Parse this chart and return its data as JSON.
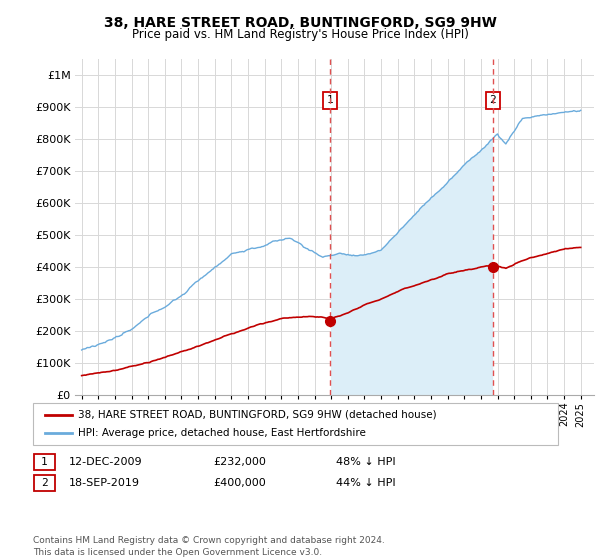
{
  "title": "38, HARE STREET ROAD, BUNTINGFORD, SG9 9HW",
  "subtitle": "Price paid vs. HM Land Registry's House Price Index (HPI)",
  "ylim": [
    0,
    1050000
  ],
  "yticks": [
    0,
    100000,
    200000,
    300000,
    400000,
    500000,
    600000,
    700000,
    800000,
    900000,
    1000000
  ],
  "ytick_labels": [
    "£0",
    "£100K",
    "£200K",
    "£300K",
    "£400K",
    "£500K",
    "£600K",
    "£700K",
    "£800K",
    "£900K",
    "£1M"
  ],
  "hpi_color": "#6aabdc",
  "hpi_fill_color": "#dceef8",
  "price_color": "#c00000",
  "vline_color": "#e05050",
  "purchase1_date": 2009.92,
  "purchase1_price": 232000,
  "purchase1_label": "1",
  "purchase2_date": 2019.72,
  "purchase2_price": 400000,
  "purchase2_label": "2",
  "legend_line1": "38, HARE STREET ROAD, BUNTINGFORD, SG9 9HW (detached house)",
  "legend_line2": "HPI: Average price, detached house, East Hertfordshire",
  "table_row1": [
    "1",
    "12-DEC-2009",
    "£232,000",
    "48% ↓ HPI"
  ],
  "table_row2": [
    "2",
    "18-SEP-2019",
    "£400,000",
    "44% ↓ HPI"
  ],
  "footnote": "Contains HM Land Registry data © Crown copyright and database right 2024.\nThis data is licensed under the Open Government Licence v3.0.",
  "background_color": "#ffffff",
  "grid_color": "#d8d8d8"
}
